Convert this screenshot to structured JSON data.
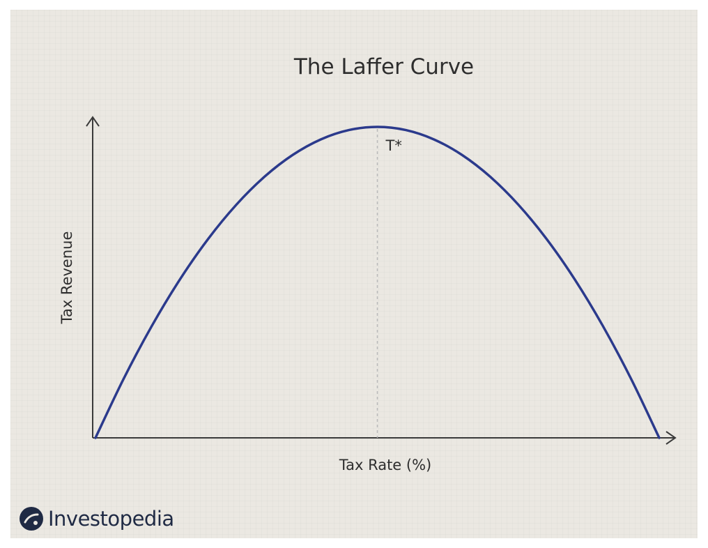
{
  "chart_data": {
    "type": "line",
    "title": "The Laffer Curve",
    "xlabel": "Tax Rate (%)",
    "ylabel": "Tax Revenue",
    "x_ticks": [],
    "y_ticks": [],
    "xlim": [
      0,
      100
    ],
    "ylim": [
      0,
      100
    ],
    "grid": false,
    "legend": "none",
    "series": [
      {
        "color": "#2b3a8c",
        "x": [
          0,
          5,
          10,
          15,
          20,
          25,
          30,
          35,
          40,
          45,
          50,
          55,
          60,
          65,
          70,
          75,
          80,
          85,
          90,
          95,
          100
        ],
        "y": [
          0,
          19,
          36,
          51,
          64,
          75,
          84,
          91,
          96,
          99,
          100,
          99,
          96,
          91,
          84,
          75,
          64,
          51,
          36,
          19,
          0
        ]
      }
    ],
    "annotations": [
      {
        "label": "T*",
        "x": 50,
        "style": "dashed vertical line at revenue maximum"
      }
    ]
  },
  "brand": {
    "name": "Investopedia",
    "logo_icon": "investopedia-logo-icon",
    "color": "#1f2a44"
  },
  "colors": {
    "background": "#ebe8e2",
    "curve": "#2b3a8c",
    "axis": "#3a3a3a",
    "guide": "#b8b8b8"
  }
}
